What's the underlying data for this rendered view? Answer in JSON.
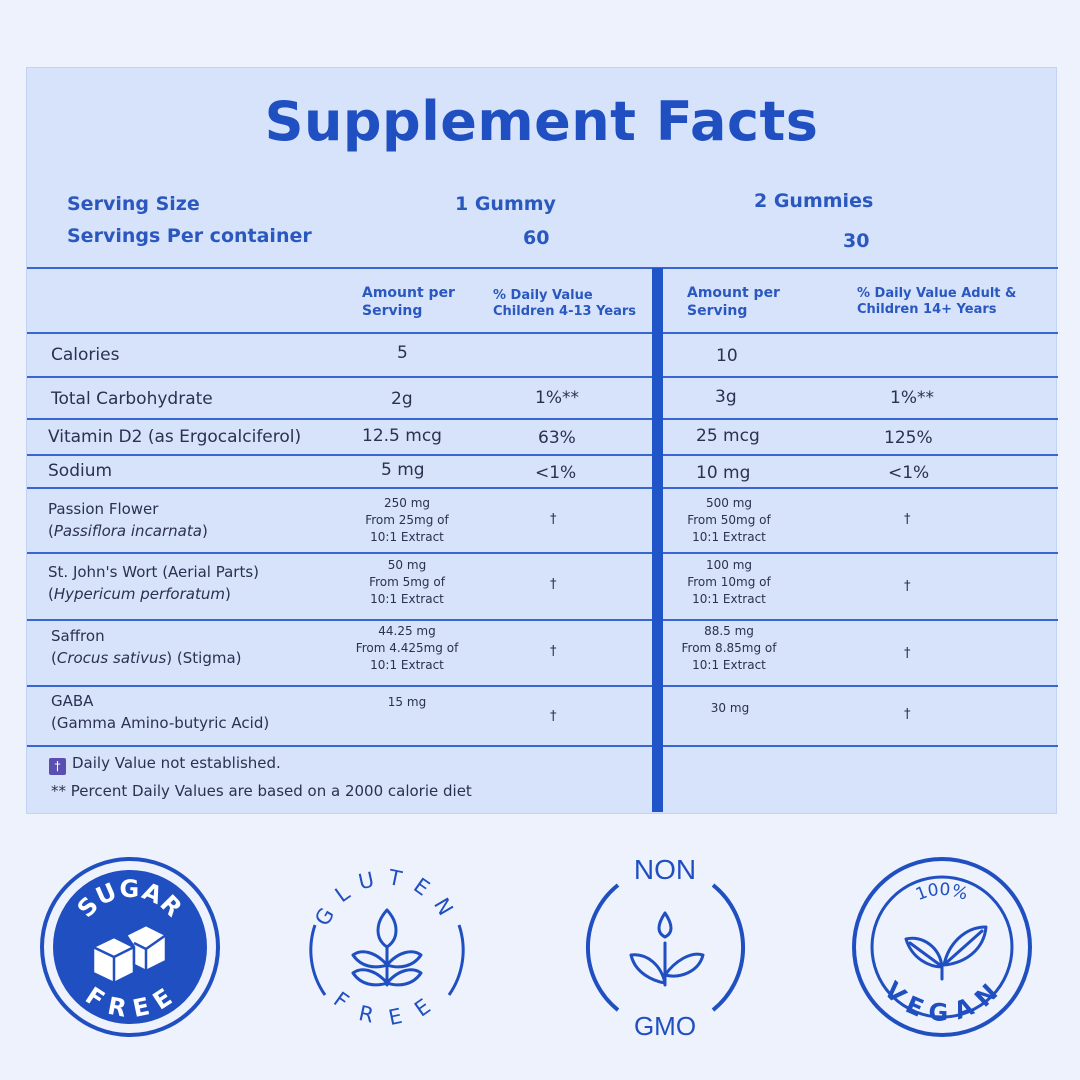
{
  "title": "Supplement Facts",
  "serving": {
    "size_label": "Serving Size",
    "per_container_label": "Servings Per container",
    "col1_size": "1 Gummy",
    "col1_servings": "60",
    "col2_size": "2 Gummies",
    "col2_servings": "30"
  },
  "columns": {
    "amount": "Amount per Serving",
    "dv_children": "% Daily Value Children 4-13 Years",
    "amount2": "Amount per Serving",
    "dv_adult": "% Daily Value Adult & Children 14+ Years"
  },
  "rows": [
    {
      "name": "Calories",
      "a1": "5",
      "d1": "",
      "a2": "10",
      "d2": ""
    },
    {
      "name": "Total Carbohydrate",
      "a1": "2g",
      "d1": "1%**",
      "a2": "3g",
      "d2": "1%**"
    },
    {
      "name": "Vitamin D2 (as Ergocalciferol)",
      "a1": "12.5 mcg",
      "d1": "63%",
      "a2": "25 mcg",
      "d2": "125%"
    },
    {
      "name": "Sodium",
      "a1": "5 mg",
      "d1": "<1%",
      "a2": "10 mg",
      "d2": "<1%"
    },
    {
      "name": "Passion Flower",
      "latin": "Passiflora incarnata",
      "latin_pre": "(",
      "latin_post": ")",
      "a1": [
        "250 mg",
        "From 25mg of",
        "10:1 Extract"
      ],
      "d1": "†",
      "a2": [
        "500 mg",
        "From 50mg of",
        "10:1 Extract"
      ],
      "d2": "†"
    },
    {
      "name": "St. John's Wort (Aerial Parts)",
      "latin": "Hypericum perforatum",
      "latin_pre": "(",
      "latin_post": ")",
      "a1": [
        "50 mg",
        "From 5mg of",
        "10:1 Extract"
      ],
      "d1": "†",
      "a2": [
        "100 mg",
        "From 10mg of",
        "10:1 Extract"
      ],
      "d2": "†"
    },
    {
      "name": "Saffron",
      "latin": "Crocus sativus",
      "latin_pre": "(",
      "latin_post": ") (Stigma)",
      "a1": [
        "44.25 mg",
        "From 4.425mg of",
        "10:1 Extract"
      ],
      "d1": "†",
      "a2": [
        "88.5 mg",
        "From 8.85mg of",
        "10:1 Extract"
      ],
      "d2": "†"
    },
    {
      "name": "GABA",
      "sub": "(Gamma Amino-butyric Acid)",
      "a1": "15 mg",
      "d1": "†",
      "a2": "30 mg",
      "d2": "†"
    }
  ],
  "footnotes": {
    "dagger_icon": "†",
    "dv": "Daily Value not established.",
    "percent": "** Percent Daily Values are based on a 2000 calorie diet"
  },
  "badges": {
    "sugar_free": {
      "top": "SUGAR",
      "bottom": "FREE"
    },
    "gluten_free": {
      "top": "GLUTEN",
      "bottom": "FREE"
    },
    "non_gmo": {
      "top": "NON",
      "bottom": "GMO"
    },
    "vegan": {
      "top": "100%",
      "bottom": "VEGAN"
    }
  },
  "colors": {
    "brand": "#1f4fc0",
    "panel": "#d6e3fb",
    "background": "#eef2fc"
  }
}
